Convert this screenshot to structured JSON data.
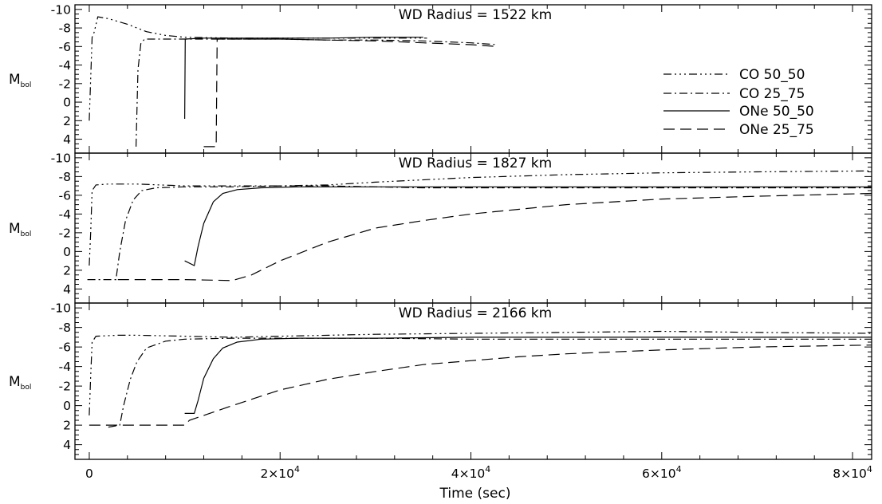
{
  "chart_data": {
    "type": "line",
    "xlabel": "Time (sec)",
    "ylabel": "M",
    "ylabel_subscript": "bol",
    "xlim": [
      -1500,
      82000
    ],
    "ylim": [
      5.5,
      -10.5
    ],
    "x_tick_labels": [
      "0",
      "2×10",
      "4×10",
      "6×10",
      "8×10"
    ],
    "x_tick_exponent": "4",
    "x_tick_values": [
      0,
      20000,
      40000,
      60000,
      80000
    ],
    "y_tick_values": [
      -10,
      -8,
      -6,
      -4,
      -2,
      0,
      2,
      4
    ],
    "y_tick_labels": [
      "-10",
      "-8",
      "-6",
      "-4",
      "-2",
      "0",
      "2",
      "4"
    ],
    "legend": {
      "placement": "right, top panel",
      "entries": [
        "CO 50_50",
        "CO 25_75",
        "ONe 50_50",
        "ONe 25_75"
      ]
    },
    "panels": [
      {
        "title": "WD Radius = 1522 km",
        "series": [
          {
            "name": "CO 50_50",
            "style": "dash-dot-dot-dot",
            "points": [
              [
                0,
                2
              ],
              [
                100,
                -1
              ],
              [
                300,
                -7
              ],
              [
                500,
                -7.5
              ],
              [
                900,
                -9.2
              ],
              [
                2000,
                -9
              ],
              [
                4000,
                -8.4
              ],
              [
                6000,
                -7.6
              ],
              [
                8000,
                -7.2
              ],
              [
                10000,
                -7
              ],
              [
                15000,
                -6.9
              ],
              [
                20000,
                -6.9
              ],
              [
                25000,
                -6.9
              ],
              [
                30000,
                -6.9
              ],
              [
                35400,
                -6.9
              ]
            ]
          },
          {
            "name": "CO 25_75",
            "style": "dash-dot",
            "points": [
              [
                4900,
                4.8
              ],
              [
                5100,
                -3.5
              ],
              [
                5400,
                -6.3
              ],
              [
                5800,
                -6.8
              ],
              [
                8000,
                -6.8
              ],
              [
                10000,
                -6.8
              ],
              [
                15000,
                -6.8
              ],
              [
                20000,
                -6.8
              ],
              [
                25000,
                -6.7
              ],
              [
                30000,
                -6.7
              ],
              [
                35000,
                -6.6
              ],
              [
                40000,
                -6.4
              ],
              [
                42700,
                -6.2
              ]
            ]
          },
          {
            "name": "ONe 50_50",
            "style": "solid",
            "points": [
              [
                10000,
                1.8
              ],
              [
                10060,
                -6.8
              ],
              [
                12000,
                -6.9
              ],
              [
                15000,
                -6.9
              ],
              [
                20000,
                -6.9
              ],
              [
                25000,
                -6.9
              ],
              [
                30000,
                -7
              ],
              [
                35000,
                -7
              ]
            ]
          },
          {
            "name": "ONe 25_75",
            "style": "long-dash",
            "points": [
              [
                12000,
                4.8
              ],
              [
                13300,
                4.8
              ],
              [
                13400,
                -6.8
              ],
              [
                16000,
                -6.8
              ],
              [
                20000,
                -6.8
              ],
              [
                25000,
                -6.7
              ],
              [
                30000,
                -6.6
              ],
              [
                35000,
                -6.4
              ],
              [
                40000,
                -6.2
              ],
              [
                42700,
                -6
              ]
            ]
          }
        ]
      },
      {
        "title": "WD Radius = 1827 km",
        "series": [
          {
            "name": "CO 50_50",
            "style": "dash-dot-dot-dot",
            "points": [
              [
                0,
                1.5
              ],
              [
                150,
                -2
              ],
              [
                300,
                -6.5
              ],
              [
                700,
                -7.1
              ],
              [
                2000,
                -7.2
              ],
              [
                5000,
                -7.2
              ],
              [
                10000,
                -7
              ],
              [
                15000,
                -7
              ],
              [
                20000,
                -7
              ],
              [
                25000,
                -7.1
              ],
              [
                30000,
                -7.4
              ],
              [
                40000,
                -7.9
              ],
              [
                50000,
                -8.2
              ],
              [
                60000,
                -8.4
              ],
              [
                70000,
                -8.5
              ],
              [
                82000,
                -8.6
              ]
            ]
          },
          {
            "name": "CO 25_75",
            "style": "dash-dot",
            "points": [
              [
                -200,
                3
              ],
              [
                2800,
                3
              ],
              [
                3200,
                0
              ],
              [
                3800,
                -3.3
              ],
              [
                4600,
                -5.5
              ],
              [
                5500,
                -6.5
              ],
              [
                7000,
                -6.8
              ],
              [
                10000,
                -6.9
              ],
              [
                15000,
                -6.9
              ],
              [
                20000,
                -7
              ],
              [
                25000,
                -7
              ],
              [
                30000,
                -6.9
              ],
              [
                35000,
                -6.8
              ],
              [
                40000,
                -6.8
              ],
              [
                50000,
                -6.8
              ],
              [
                60000,
                -6.8
              ],
              [
                70000,
                -6.8
              ],
              [
                82000,
                -6.8
              ]
            ]
          },
          {
            "name": "ONe 50_50",
            "style": "solid",
            "points": [
              [
                10000,
                1
              ],
              [
                11000,
                1.5
              ],
              [
                11400,
                -0.5
              ],
              [
                12000,
                -3
              ],
              [
                13000,
                -5.3
              ],
              [
                14000,
                -6.2
              ],
              [
                15500,
                -6.6
              ],
              [
                18000,
                -6.8
              ],
              [
                22000,
                -6.9
              ],
              [
                30000,
                -6.9
              ],
              [
                40000,
                -6.9
              ],
              [
                50000,
                -6.9
              ],
              [
                60000,
                -6.9
              ],
              [
                70000,
                -6.9
              ],
              [
                82000,
                -6.9
              ]
            ]
          },
          {
            "name": "ONe 25_75",
            "style": "long-dash",
            "points": [
              [
                3000,
                3
              ],
              [
                5000,
                3
              ],
              [
                10000,
                3
              ],
              [
                15000,
                3.1
              ],
              [
                17000,
                2.5
              ],
              [
                20000,
                1
              ],
              [
                25000,
                -1
              ],
              [
                30000,
                -2.5
              ],
              [
                35000,
                -3.3
              ],
              [
                40000,
                -4
              ],
              [
                45000,
                -4.5
              ],
              [
                50000,
                -5
              ],
              [
                55000,
                -5.3
              ],
              [
                60000,
                -5.6
              ],
              [
                70000,
                -5.9
              ],
              [
                82000,
                -6.2
              ]
            ]
          }
        ]
      },
      {
        "title": "WD Radius = 2166 km",
        "series": [
          {
            "name": "CO 50_50",
            "style": "dash-dot-dot-dot",
            "points": [
              [
                0,
                1
              ],
              [
                150,
                -3
              ],
              [
                300,
                -6.5
              ],
              [
                700,
                -7.1
              ],
              [
                3000,
                -7.2
              ],
              [
                5000,
                -7.2
              ],
              [
                10000,
                -7.1
              ],
              [
                15000,
                -7
              ],
              [
                20000,
                -7.1
              ],
              [
                30000,
                -7.3
              ],
              [
                40000,
                -7.4
              ],
              [
                50000,
                -7.5
              ],
              [
                60000,
                -7.6
              ],
              [
                70000,
                -7.5
              ],
              [
                82000,
                -7.4
              ]
            ]
          },
          {
            "name": "CO 25_75",
            "style": "dash-dot",
            "points": [
              [
                2000,
                2.2
              ],
              [
                3200,
                2
              ],
              [
                3600,
                0
              ],
              [
                4300,
                -2.7
              ],
              [
                5000,
                -4.5
              ],
              [
                6000,
                -5.9
              ],
              [
                8000,
                -6.6
              ],
              [
                10000,
                -6.8
              ],
              [
                15000,
                -6.9
              ],
              [
                20000,
                -6.9
              ],
              [
                30000,
                -6.9
              ],
              [
                40000,
                -6.8
              ],
              [
                50000,
                -6.8
              ],
              [
                60000,
                -6.8
              ],
              [
                70000,
                -6.8
              ],
              [
                82000,
                -6.8
              ]
            ]
          },
          {
            "name": "ONe 50_50",
            "style": "solid",
            "points": [
              [
                10000,
                0.8
              ],
              [
                11000,
                0.8
              ],
              [
                11400,
                -0.5
              ],
              [
                12000,
                -2.8
              ],
              [
                13000,
                -4.8
              ],
              [
                14000,
                -5.9
              ],
              [
                15500,
                -6.5
              ],
              [
                18000,
                -6.8
              ],
              [
                22000,
                -6.9
              ],
              [
                30000,
                -6.9
              ],
              [
                40000,
                -7
              ],
              [
                50000,
                -7
              ],
              [
                60000,
                -7
              ],
              [
                70000,
                -7
              ],
              [
                82000,
                -7
              ]
            ]
          },
          {
            "name": "ONe 25_75",
            "style": "long-dash",
            "points": [
              [
                0,
                2
              ],
              [
                5000,
                2
              ],
              [
                10000,
                2
              ],
              [
                10500,
                1.5
              ],
              [
                12000,
                1
              ],
              [
                15000,
                0
              ],
              [
                20000,
                -1.6
              ],
              [
                25000,
                -2.7
              ],
              [
                30000,
                -3.5
              ],
              [
                35000,
                -4.2
              ],
              [
                40000,
                -4.6
              ],
              [
                45000,
                -5
              ],
              [
                50000,
                -5.3
              ],
              [
                60000,
                -5.7
              ],
              [
                70000,
                -6
              ],
              [
                82000,
                -6.2
              ]
            ]
          }
        ]
      }
    ]
  }
}
